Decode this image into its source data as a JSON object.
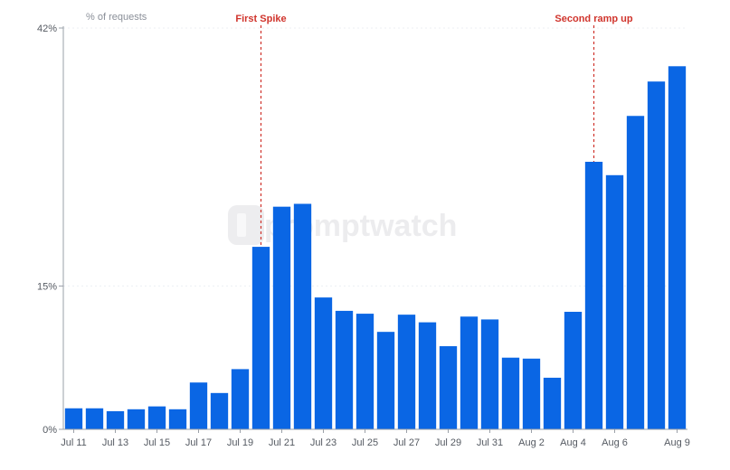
{
  "chart_data": {
    "type": "bar",
    "ylabel": "% of requests",
    "ylim": [
      0,
      42
    ],
    "yticks": [
      {
        "value": 0,
        "label": "0%"
      },
      {
        "value": 15,
        "label": "15%"
      },
      {
        "value": 42,
        "label": "42%"
      }
    ],
    "categories": [
      "Jul 11",
      "Jul 12",
      "Jul 13",
      "Jul 14",
      "Jul 15",
      "Jul 16",
      "Jul 17",
      "Jul 18",
      "Jul 19",
      "Jul 20",
      "Jul 21",
      "Jul 22",
      "Jul 23",
      "Jul 24",
      "Jul 25",
      "Jul 26",
      "Jul 27",
      "Jul 28",
      "Jul 29",
      "Jul 30",
      "Jul 31",
      "Aug 1",
      "Aug 2",
      "Aug 3",
      "Aug 4",
      "Aug 5",
      "Aug 6",
      "Aug 7",
      "Aug 8",
      "Aug 9"
    ],
    "values": [
      2.2,
      2.2,
      1.9,
      2.1,
      2.4,
      2.1,
      4.9,
      3.8,
      6.3,
      19.1,
      23.3,
      23.6,
      13.8,
      12.4,
      12.1,
      10.2,
      12.0,
      11.2,
      8.7,
      11.8,
      11.5,
      7.5,
      7.4,
      5.4,
      12.3,
      28.0,
      26.6,
      32.8,
      36.4,
      38.0
    ],
    "xtick_labels": [
      "Jul 11",
      "Jul 13",
      "Jul 15",
      "Jul 17",
      "Jul 19",
      "Jul 21",
      "Jul 23",
      "Jul 25",
      "Jul 27",
      "Jul 29",
      "Jul 31",
      "Aug 2",
      "Aug 4",
      "Aug 6",
      "Aug 9"
    ],
    "bar_color": "#0a66e4",
    "grid": true,
    "annotations": [
      {
        "text": "First Spike",
        "category": "Jul 20",
        "color": "#d0342c"
      },
      {
        "text": "Second ramp up",
        "category": "Aug 5",
        "color": "#d0342c"
      }
    ],
    "watermark": "promptwatch"
  }
}
